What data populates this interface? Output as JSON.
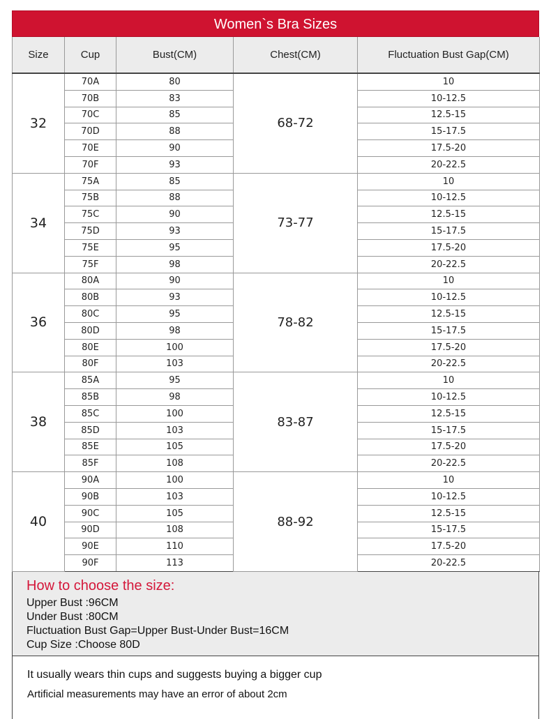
{
  "title": "Women`s Bra  Sizes",
  "headers": [
    "Size",
    "Cup",
    "Bust(CM)",
    "Chest(CM)",
    "Fluctuation Bust Gap(CM)"
  ],
  "groups": [
    {
      "size": "32",
      "chest": "68-72",
      "cups": [
        "70A",
        "70B",
        "70C",
        "70D",
        "70E",
        "70F"
      ],
      "bust": [
        "80",
        "83",
        "85",
        "88",
        "90",
        "93"
      ]
    },
    {
      "size": "34",
      "chest": "73-77",
      "cups": [
        "75A",
        "75B",
        "75C",
        "75D",
        "75E",
        "75F"
      ],
      "bust": [
        "85",
        "88",
        "90",
        "93",
        "95",
        "98"
      ]
    },
    {
      "size": "36",
      "chest": "78-82",
      "cups": [
        "80A",
        "80B",
        "80C",
        "80D",
        "80E",
        "80F"
      ],
      "bust": [
        "90",
        "93",
        "95",
        "98",
        "100",
        "103"
      ]
    },
    {
      "size": "38",
      "chest": "83-87",
      "cups": [
        "85A",
        "85B",
        "85C",
        "85D",
        "85E",
        "85F"
      ],
      "bust": [
        "95",
        "98",
        "100",
        "103",
        "105",
        "108"
      ]
    },
    {
      "size": "40",
      "chest": "88-92",
      "cups": [
        "90A",
        "90B",
        "90C",
        "90D",
        "90E",
        "90F"
      ],
      "bust": [
        "100",
        "103",
        "105",
        "108",
        "110",
        "113"
      ]
    }
  ],
  "gaps": [
    "10",
    "10-12.5",
    "12.5-15",
    "15-17.5",
    "17.5-20",
    "20-22.5"
  ],
  "guide": {
    "heading": "How to choose the size:",
    "lines": [
      "Upper Bust :96CM",
      "Under Bust :80CM",
      "Fluctuation Bust Gap=Upper Bust-Under Bust=16CM",
      "Cup Size :Choose 80D"
    ]
  },
  "notes": [
    "It usually wears thin cups and suggests buying a bigger cup",
    "Artificial measurements may have an error of about 2cm"
  ],
  "colors": {
    "title_bg": "#cf1330",
    "guide_heading": "#d4173a",
    "header_bg": "#ececec"
  }
}
